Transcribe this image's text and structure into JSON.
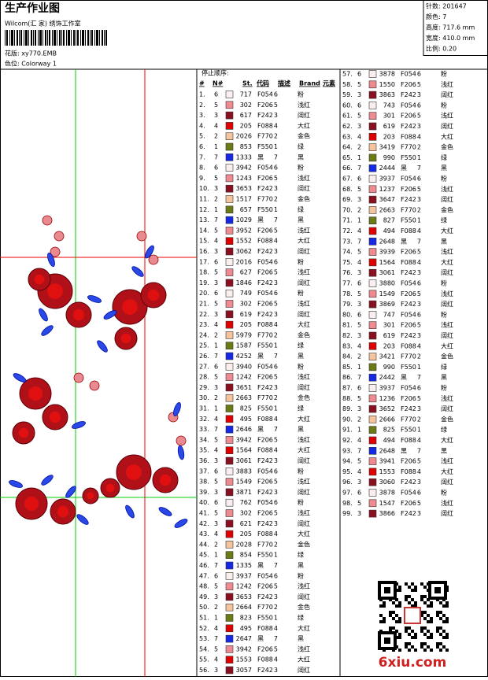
{
  "header": {
    "title": "生产作业图",
    "subtitle": "Wilcom(汇 家) 绣饰工作室",
    "design": "花版: xy770.EMB",
    "colorway": "色位: Colorway 1"
  },
  "info": [
    "针数: 201647",
    "颜色: 7",
    "高度: 717.6 mm",
    "宽度: 410.0 mm",
    "比例: 0.20"
  ],
  "table": {
    "title": "停止顺序:",
    "columns": [
      "#",
      "N#",
      "St.",
      "代码",
      "描述",
      "Brand",
      "元素"
    ],
    "rows": [
      [
        "1.",
        6,
        717,
        "F054",
        6,
        "粉"
      ],
      [
        "2.",
        5,
        302,
        "F206",
        5,
        "浅红"
      ],
      [
        "3.",
        3,
        617,
        "F242",
        3,
        "阔红"
      ],
      [
        "4.",
        4,
        205,
        "F088",
        4,
        "大红"
      ],
      [
        "5.",
        2,
        2026,
        "F770",
        2,
        "金色"
      ],
      [
        "6.",
        1,
        853,
        "F550",
        1,
        "绿"
      ],
      [
        "7.",
        7,
        1333,
        "黑",
        7,
        "黑"
      ],
      [
        "8.",
        6,
        3942,
        "F054",
        6,
        "粉"
      ],
      [
        "9.",
        5,
        1243,
        "F206",
        5,
        "浅红"
      ],
      [
        "10.",
        3,
        3653,
        "F242",
        3,
        "阔红"
      ],
      [
        "11.",
        2,
        1517,
        "F770",
        2,
        "金色"
      ],
      [
        "12.",
        1,
        657,
        "F550",
        1,
        "绿"
      ],
      [
        "13.",
        7,
        1029,
        "黑",
        7,
        "黑"
      ],
      [
        "14.",
        5,
        3952,
        "F206",
        5,
        "浅红"
      ],
      [
        "15.",
        4,
        1552,
        "F088",
        4,
        "大红"
      ],
      [
        "16.",
        3,
        3062,
        "F242",
        3,
        "阔红"
      ],
      [
        "17.",
        6,
        2016,
        "F054",
        6,
        "粉"
      ],
      [
        "18.",
        5,
        627,
        "F206",
        5,
        "浅红"
      ],
      [
        "19.",
        3,
        1846,
        "F242",
        3,
        "阔红"
      ],
      [
        "20.",
        6,
        749,
        "F054",
        6,
        "粉"
      ],
      [
        "21.",
        5,
        302,
        "F206",
        5,
        "浅红"
      ],
      [
        "22.",
        3,
        619,
        "F242",
        3,
        "阔红"
      ],
      [
        "23.",
        4,
        205,
        "F088",
        4,
        "大红"
      ],
      [
        "24.",
        2,
        5979,
        "F770",
        2,
        "金色"
      ],
      [
        "25.",
        1,
        1587,
        "F550",
        1,
        "绿"
      ],
      [
        "26.",
        7,
        4252,
        "黑",
        7,
        "黑"
      ],
      [
        "27.",
        6,
        3940,
        "F054",
        6,
        "粉"
      ],
      [
        "28.",
        5,
        1242,
        "F206",
        5,
        "浅红"
      ],
      [
        "29.",
        3,
        3651,
        "F242",
        3,
        "阔红"
      ],
      [
        "30.",
        2,
        2663,
        "F770",
        2,
        "金色"
      ],
      [
        "31.",
        1,
        825,
        "F550",
        1,
        "绿"
      ],
      [
        "32.",
        4,
        495,
        "F088",
        4,
        "大红"
      ],
      [
        "33.",
        7,
        2646,
        "黑",
        7,
        "黑"
      ],
      [
        "34.",
        5,
        3942,
        "F206",
        5,
        "浅红"
      ],
      [
        "35.",
        4,
        1564,
        "F088",
        4,
        "大红"
      ],
      [
        "36.",
        3,
        3061,
        "F242",
        3,
        "阔红"
      ],
      [
        "37.",
        6,
        3883,
        "F054",
        6,
        "粉"
      ],
      [
        "38.",
        5,
        1549,
        "F206",
        5,
        "浅红"
      ],
      [
        "39.",
        3,
        3871,
        "F242",
        3,
        "阔红"
      ],
      [
        "40.",
        6,
        762,
        "F054",
        6,
        "粉"
      ],
      [
        "41.",
        5,
        302,
        "F206",
        5,
        "浅红"
      ],
      [
        "42.",
        3,
        621,
        "F242",
        3,
        "阔红"
      ],
      [
        "43.",
        4,
        205,
        "F088",
        4,
        "大红"
      ],
      [
        "44.",
        2,
        2028,
        "F770",
        2,
        "金色"
      ],
      [
        "45.",
        1,
        854,
        "F550",
        1,
        "绿"
      ],
      [
        "46.",
        7,
        1335,
        "黑",
        7,
        "黑"
      ],
      [
        "47.",
        6,
        3937,
        "F054",
        6,
        "粉"
      ],
      [
        "48.",
        5,
        1242,
        "F206",
        5,
        "浅红"
      ],
      [
        "49.",
        3,
        3653,
        "F242",
        3,
        "阔红"
      ],
      [
        "50.",
        2,
        2664,
        "F770",
        2,
        "金色"
      ],
      [
        "51.",
        1,
        823,
        "F550",
        1,
        "绿"
      ],
      [
        "52.",
        4,
        495,
        "F088",
        4,
        "大红"
      ],
      [
        "53.",
        7,
        2647,
        "黑",
        7,
        "黑"
      ],
      [
        "54.",
        5,
        3942,
        "F206",
        5,
        "浅红"
      ],
      [
        "55.",
        4,
        1553,
        "F088",
        4,
        "大红"
      ],
      [
        "56.",
        3,
        3057,
        "F242",
        3,
        "阔红"
      ],
      [
        "57.",
        6,
        3878,
        "F054",
        6,
        "粉"
      ],
      [
        "58.",
        5,
        1550,
        "F206",
        5,
        "浅红"
      ],
      [
        "59.",
        3,
        3863,
        "F242",
        3,
        "阔红"
      ],
      [
        "60.",
        6,
        743,
        "F054",
        6,
        "粉"
      ],
      [
        "61.",
        5,
        301,
        "F206",
        5,
        "浅红"
      ],
      [
        "62.",
        3,
        619,
        "F242",
        3,
        "阔红"
      ],
      [
        "63.",
        4,
        203,
        "F088",
        4,
        "大红"
      ],
      [
        "64.",
        2,
        3419,
        "F770",
        2,
        "金色"
      ],
      [
        "65.",
        1,
        990,
        "F550",
        1,
        "绿"
      ],
      [
        "66.",
        7,
        2444,
        "黑",
        7,
        "黑"
      ],
      [
        "67.",
        6,
        3937,
        "F054",
        6,
        "粉"
      ],
      [
        "68.",
        5,
        1237,
        "F206",
        5,
        "浅红"
      ],
      [
        "69.",
        3,
        3647,
        "F242",
        3,
        "阔红"
      ],
      [
        "70.",
        2,
        2663,
        "F770",
        2,
        "金色"
      ],
      [
        "71.",
        1,
        827,
        "F550",
        1,
        "绿"
      ],
      [
        "72.",
        4,
        494,
        "F088",
        4,
        "大红"
      ],
      [
        "73.",
        7,
        2648,
        "黑",
        7,
        "黑"
      ],
      [
        "74.",
        5,
        3939,
        "F206",
        5,
        "浅红"
      ],
      [
        "75.",
        4,
        1564,
        "F088",
        4,
        "大红"
      ],
      [
        "76.",
        3,
        3061,
        "F242",
        3,
        "阔红"
      ],
      [
        "77.",
        6,
        3880,
        "F054",
        6,
        "粉"
      ],
      [
        "78.",
        5,
        1549,
        "F206",
        5,
        "浅红"
      ],
      [
        "79.",
        3,
        3869,
        "F242",
        3,
        "阔红"
      ],
      [
        "80.",
        6,
        747,
        "F054",
        6,
        "粉"
      ],
      [
        "81.",
        5,
        301,
        "F206",
        5,
        "浅红"
      ],
      [
        "82.",
        3,
        619,
        "F242",
        3,
        "阔红"
      ],
      [
        "83.",
        4,
        203,
        "F088",
        4,
        "大红"
      ],
      [
        "84.",
        2,
        3421,
        "F770",
        2,
        "金色"
      ],
      [
        "85.",
        1,
        990,
        "F550",
        1,
        "绿"
      ],
      [
        "86.",
        7,
        2442,
        "黑",
        7,
        "黑"
      ],
      [
        "87.",
        6,
        3937,
        "F054",
        6,
        "粉"
      ],
      [
        "88.",
        5,
        1236,
        "F206",
        5,
        "浅红"
      ],
      [
        "89.",
        3,
        3652,
        "F242",
        3,
        "阔红"
      ],
      [
        "90.",
        2,
        2666,
        "F770",
        2,
        "金色"
      ],
      [
        "91.",
        1,
        825,
        "F550",
        1,
        "绿"
      ],
      [
        "92.",
        4,
        494,
        "F088",
        4,
        "大红"
      ],
      [
        "93.",
        7,
        2648,
        "黑",
        7,
        "黑"
      ],
      [
        "94.",
        5,
        3941,
        "F206",
        5,
        "浅红"
      ],
      [
        "95.",
        4,
        1553,
        "F088",
        4,
        "大红"
      ],
      [
        "96.",
        3,
        3060,
        "F242",
        3,
        "阔红"
      ],
      [
        "97.",
        6,
        3878,
        "F054",
        6,
        "粉"
      ],
      [
        "98.",
        5,
        1547,
        "F206",
        5,
        "浅红"
      ],
      [
        "99.",
        3,
        3866,
        "F242",
        3,
        "阔红"
      ]
    ]
  },
  "watermark": "6xiu.com"
}
